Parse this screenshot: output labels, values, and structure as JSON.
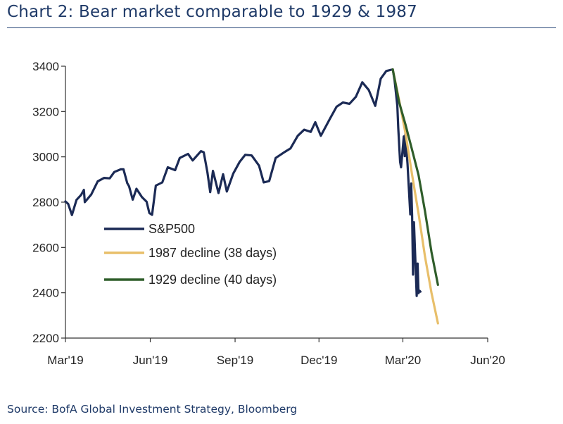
{
  "header": {
    "title": "Chart 2: Bear market comparable to 1929 & 1987"
  },
  "footer": {
    "source": "Source: BofA Global Investment Strategy, Bloomberg"
  },
  "chart_data": {
    "type": "line",
    "title": "Chart 2: Bear market comparable to 1929 & 1987",
    "xlabel": "",
    "ylabel": "",
    "ylim": [
      2200,
      3400
    ],
    "yticks": [
      2200,
      2400,
      2600,
      2800,
      3000,
      3200,
      3400
    ],
    "xlim": [
      "2019-03-01",
      "2020-06-01"
    ],
    "xticks": [
      {
        "date": "2019-03-01",
        "label": "Mar'19"
      },
      {
        "date": "2019-06-01",
        "label": "Jun'19"
      },
      {
        "date": "2019-09-01",
        "label": "Sep'19"
      },
      {
        "date": "2019-12-01",
        "label": "Dec'19"
      },
      {
        "date": "2020-03-01",
        "label": "Mar'20"
      },
      {
        "date": "2020-06-01",
        "label": "Jun'20"
      }
    ],
    "grid": false,
    "legend_position": "bottom-left inside",
    "series": [
      {
        "name": "S&P500",
        "color": "#1b2a55",
        "points": [
          [
            "2019-03-01",
            2803
          ],
          [
            "2019-03-04",
            2792
          ],
          [
            "2019-03-08",
            2743
          ],
          [
            "2019-03-13",
            2810
          ],
          [
            "2019-03-18",
            2832
          ],
          [
            "2019-03-21",
            2854
          ],
          [
            "2019-03-22",
            2800
          ],
          [
            "2019-03-29",
            2834
          ],
          [
            "2019-04-05",
            2892
          ],
          [
            "2019-04-12",
            2907
          ],
          [
            "2019-04-18",
            2905
          ],
          [
            "2019-04-23",
            2933
          ],
          [
            "2019-04-30",
            2945
          ],
          [
            "2019-05-03",
            2945
          ],
          [
            "2019-05-07",
            2884
          ],
          [
            "2019-05-09",
            2870
          ],
          [
            "2019-05-13",
            2811
          ],
          [
            "2019-05-17",
            2859
          ],
          [
            "2019-05-23",
            2822
          ],
          [
            "2019-05-28",
            2802
          ],
          [
            "2019-05-31",
            2752
          ],
          [
            "2019-06-03",
            2744
          ],
          [
            "2019-06-07",
            2873
          ],
          [
            "2019-06-14",
            2887
          ],
          [
            "2019-06-20",
            2954
          ],
          [
            "2019-06-28",
            2941
          ],
          [
            "2019-07-03",
            2995
          ],
          [
            "2019-07-12",
            3013
          ],
          [
            "2019-07-17",
            2984
          ],
          [
            "2019-07-26",
            3025
          ],
          [
            "2019-07-29",
            3020
          ],
          [
            "2019-08-02",
            2932
          ],
          [
            "2019-08-05",
            2844
          ],
          [
            "2019-08-08",
            2938
          ],
          [
            "2019-08-14",
            2840
          ],
          [
            "2019-08-19",
            2923
          ],
          [
            "2019-08-23",
            2847
          ],
          [
            "2019-08-30",
            2926
          ],
          [
            "2019-09-06",
            2978
          ],
          [
            "2019-09-12",
            3009
          ],
          [
            "2019-09-19",
            3006
          ],
          [
            "2019-09-27",
            2961
          ],
          [
            "2019-10-02",
            2887
          ],
          [
            "2019-10-08",
            2893
          ],
          [
            "2019-10-15",
            2995
          ],
          [
            "2019-10-25",
            3022
          ],
          [
            "2019-10-31",
            3037
          ],
          [
            "2019-11-08",
            3093
          ],
          [
            "2019-11-15",
            3120
          ],
          [
            "2019-11-22",
            3110
          ],
          [
            "2019-11-27",
            3153
          ],
          [
            "2019-12-03",
            3093
          ],
          [
            "2019-12-13",
            3169
          ],
          [
            "2019-12-20",
            3221
          ],
          [
            "2019-12-27",
            3240
          ],
          [
            "2020-01-03",
            3234
          ],
          [
            "2020-01-10",
            3265
          ],
          [
            "2020-01-17",
            3329
          ],
          [
            "2020-01-24",
            3295
          ],
          [
            "2020-01-31",
            3225
          ],
          [
            "2020-02-06",
            3345
          ],
          [
            "2020-02-12",
            3379
          ],
          [
            "2020-02-19",
            3386
          ],
          [
            "2020-02-21",
            3337
          ],
          [
            "2020-02-24",
            3225
          ],
          [
            "2020-02-25",
            3128
          ],
          [
            "2020-02-27",
            2978
          ],
          [
            "2020-02-28",
            2954
          ],
          [
            "2020-03-02",
            3090
          ],
          [
            "2020-03-03",
            3003
          ],
          [
            "2020-03-04",
            3130
          ],
          [
            "2020-03-05",
            3023
          ],
          [
            "2020-03-06",
            2972
          ],
          [
            "2020-03-09",
            2746
          ],
          [
            "2020-03-10",
            2882
          ],
          [
            "2020-03-11",
            2741
          ],
          [
            "2020-03-12",
            2480
          ],
          [
            "2020-03-13",
            2711
          ],
          [
            "2020-03-16",
            2386
          ],
          [
            "2020-03-17",
            2529
          ],
          [
            "2020-03-18",
            2398
          ],
          [
            "2020-03-19",
            2409
          ],
          [
            "2020-03-20",
            2405
          ]
        ]
      },
      {
        "name": "1987 decline (38 days)",
        "color": "#e8bf6a",
        "points": [
          [
            "2020-02-19",
            3386
          ],
          [
            "2020-02-26",
            3250
          ],
          [
            "2020-03-04",
            3100
          ],
          [
            "2020-03-11",
            2920
          ],
          [
            "2020-03-18",
            2750
          ],
          [
            "2020-03-25",
            2560
          ],
          [
            "2020-04-01",
            2400
          ],
          [
            "2020-04-08",
            2265
          ]
        ]
      },
      {
        "name": "1929 decline (40 days)",
        "color": "#2f5d2a",
        "points": [
          [
            "2020-02-19",
            3386
          ],
          [
            "2020-02-26",
            3240
          ],
          [
            "2020-03-04",
            3140
          ],
          [
            "2020-03-11",
            3030
          ],
          [
            "2020-03-18",
            2920
          ],
          [
            "2020-03-25",
            2760
          ],
          [
            "2020-04-01",
            2580
          ],
          [
            "2020-04-08",
            2435
          ]
        ]
      }
    ]
  }
}
